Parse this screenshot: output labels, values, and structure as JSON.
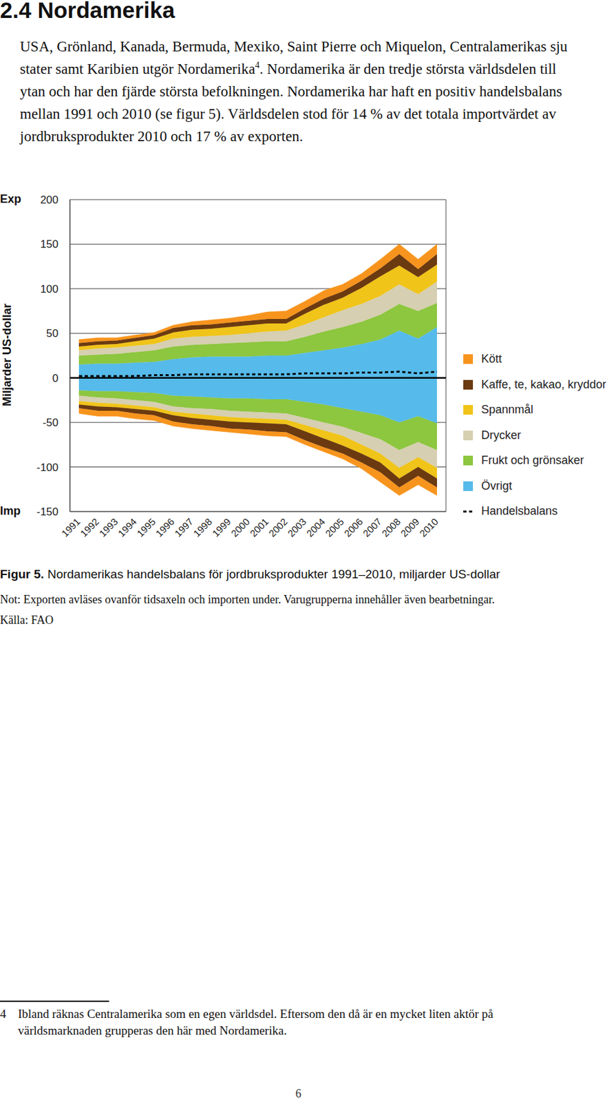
{
  "heading": "2.4 Nordamerika",
  "paragraph": {
    "before_ref": "USA, Grönland, Kanada, Bermuda, Mexiko, Saint Pierre och Miquelon, Centralamerikas sju stater samt Karibien utgör Nordamerika",
    "footnote_ref": "4",
    "after_ref": ". Nordamerika är den tredje största världsdelen till ytan och har den fjärde största befolkningen. Nordamerika har haft en positiv handelsbalans mellan 1991 och 2010 (se figur 5). Världsdelen stod för 14 % av det totala importvärdet av jordbruksprodukter 2010 och 17 % av exporten."
  },
  "chart_data": {
    "type": "area",
    "stacked": true,
    "grid": true,
    "y_label": "Miljarder US-dollar",
    "export_label": "Exp",
    "import_label": "Imp",
    "categories": [
      "1991",
      "1992",
      "1993",
      "1994",
      "1995",
      "1996",
      "1997",
      "1998",
      "1999",
      "2000",
      "2001",
      "2002",
      "2003",
      "2004",
      "2005",
      "2006",
      "2007",
      "2008",
      "2009",
      "2010"
    ],
    "ylim": [
      -150,
      200
    ],
    "yticks": [
      -150,
      -100,
      -50,
      0,
      50,
      100,
      150,
      200
    ],
    "series": [
      {
        "name": "Kött",
        "color": "#f7941d",
        "values": [
          4,
          4,
          3,
          3,
          3,
          3,
          4,
          5,
          5,
          6,
          8,
          9,
          8,
          9,
          8,
          8,
          10,
          11,
          11,
          11
        ],
        "import_values": [
          -6,
          -6,
          -6,
          -6,
          -6,
          -5,
          -5,
          -5,
          -4,
          -5,
          -5,
          -5,
          -5,
          -5,
          -6,
          -7,
          -11,
          -9,
          -10,
          -9
        ]
      },
      {
        "name": "Kaffe, te, kakao, kryddor",
        "color": "#6b3a10",
        "values": [
          4,
          4,
          4,
          4,
          4,
          5,
          5,
          5,
          5,
          5,
          5,
          5,
          6,
          7,
          7,
          8,
          9,
          13,
          9,
          12
        ],
        "import_values": [
          -4,
          -5,
          -4,
          -5,
          -5,
          -7,
          -7,
          -7,
          -8,
          -8,
          -9,
          -9,
          -10,
          -10,
          -9,
          -10,
          -11,
          -10,
          -10,
          -10
        ]
      },
      {
        "name": "Spannmål",
        "color": "#f0c419",
        "values": [
          4,
          4,
          4,
          5,
          6,
          7,
          8,
          8,
          9,
          9,
          9,
          8,
          12,
          14,
          14,
          18,
          22,
          21,
          19,
          19
        ],
        "import_values": [
          -4,
          -4,
          -4,
          -4,
          -4,
          -4,
          -5,
          -5,
          -5,
          -5,
          -5,
          -5,
          -7,
          -9,
          -11,
          -10,
          -10,
          -12,
          -11,
          -12
        ]
      },
      {
        "name": "Drycker",
        "color": "#d6cfb1",
        "values": [
          6,
          7,
          7,
          7,
          7,
          9,
          9,
          9,
          9,
          10,
          11,
          12,
          14,
          16,
          19,
          20,
          21,
          22,
          19,
          24
        ],
        "import_values": [
          -6,
          -6,
          -6,
          -6,
          -6,
          -6,
          -6,
          -7,
          -7,
          -7,
          -7,
          -7,
          -8,
          -9,
          -10,
          -13,
          -16,
          -20,
          -17,
          -20
        ]
      },
      {
        "name": "Frukt och grönsaker",
        "color": "#8dc63f",
        "values": [
          10,
          10,
          11,
          12,
          13,
          14,
          14,
          14,
          15,
          16,
          16,
          16,
          18,
          21,
          23,
          25,
          28,
          30,
          31,
          27
        ],
        "import_values": [
          -6,
          -7,
          -8,
          -9,
          -10,
          -12,
          -13,
          -13,
          -14,
          -15,
          -15,
          -16,
          -18,
          -20,
          -21,
          -24,
          -27,
          -31,
          -29,
          -30
        ]
      },
      {
        "name": "Övrigt",
        "color": "#56bbea",
        "values": [
          15,
          16,
          16,
          17,
          18,
          21,
          23,
          24,
          24,
          24,
          25,
          25,
          28,
          31,
          34,
          38,
          43,
          53,
          44,
          57
        ],
        "import_values": [
          -14,
          -15,
          -15,
          -16,
          -17,
          -20,
          -21,
          -22,
          -23,
          -23,
          -24,
          -24,
          -27,
          -30,
          -34,
          -38,
          -42,
          -50,
          -43,
          -51
        ]
      },
      {
        "name": "Handelsbalans",
        "type": "line",
        "line_style": "dashed",
        "color": "#000000",
        "values": [
          2,
          2,
          2,
          2,
          3,
          3,
          4,
          4,
          4,
          4,
          4,
          4,
          5,
          5,
          5,
          6,
          6,
          7,
          5,
          7
        ]
      }
    ]
  },
  "caption": {
    "label": "Figur 5.",
    "text": " Nordamerikas handelsbalans för jordbruksprodukter 1991–2010, miljarder US-dollar"
  },
  "note": "Not: Exporten avläses ovanför tidsaxeln och importen under. Varugrupperna innehåller även bearbetningar.",
  "source": "Källa: FAO",
  "footnote": {
    "number": "4",
    "text": "Ibland räknas Centralamerika som en egen världsdel. Eftersom den då är en mycket liten aktör på världsmarknaden grupperas den här med Nordamerika."
  },
  "page_number": "6"
}
